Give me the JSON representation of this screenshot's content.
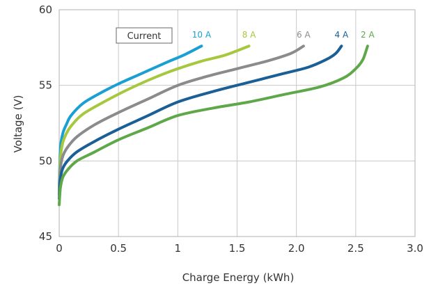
{
  "chart_data": {
    "type": "line",
    "xlabel": "Charge Energy (kWh)",
    "ylabel": "Voltage (V)",
    "xlim": [
      0,
      3.0
    ],
    "ylim": [
      45,
      60
    ],
    "x_ticks": [
      "0",
      "0.5",
      "1",
      "1.5",
      "2.0",
      "2.5",
      "3.0"
    ],
    "y_ticks": [
      "45",
      "50",
      "55",
      "60"
    ],
    "grid": true,
    "legend_title": "Current",
    "series": [
      {
        "name": "10 A",
        "color": "#1a9fd3",
        "x": [
          0,
          0.01,
          0.03,
          0.06,
          0.1,
          0.2,
          0.35,
          0.5,
          0.7,
          0.9,
          1.05,
          1.2
        ],
        "y": [
          48.3,
          50.8,
          51.8,
          52.4,
          53.0,
          53.8,
          54.5,
          55.1,
          55.8,
          56.5,
          57.0,
          57.6
        ]
      },
      {
        "name": "8 A",
        "color": "#a5c83e",
        "x": [
          0,
          0.01,
          0.03,
          0.06,
          0.1,
          0.2,
          0.4,
          0.6,
          0.8,
          1.0,
          1.2,
          1.4,
          1.6
        ],
        "y": [
          48.0,
          50.2,
          51.2,
          51.8,
          52.3,
          53.1,
          54.0,
          54.8,
          55.5,
          56.1,
          56.6,
          57.0,
          57.6
        ]
      },
      {
        "name": "6 A",
        "color": "#8a8b8d",
        "x": [
          0,
          0.01,
          0.03,
          0.07,
          0.15,
          0.3,
          0.5,
          0.75,
          1.0,
          1.25,
          1.5,
          1.75,
          1.95,
          2.06
        ],
        "y": [
          47.8,
          49.5,
          50.3,
          50.9,
          51.6,
          52.4,
          53.2,
          54.1,
          55.0,
          55.6,
          56.1,
          56.6,
          57.1,
          57.6
        ]
      },
      {
        "name": "4 A",
        "color": "#1a5f96",
        "x": [
          0,
          0.01,
          0.03,
          0.07,
          0.15,
          0.3,
          0.5,
          0.75,
          1.0,
          1.3,
          1.6,
          1.9,
          2.1,
          2.25,
          2.33,
          2.38
        ],
        "y": [
          47.5,
          48.8,
          49.5,
          50.0,
          50.6,
          51.3,
          52.1,
          53.0,
          53.9,
          54.6,
          55.2,
          55.8,
          56.2,
          56.7,
          57.1,
          57.6
        ]
      },
      {
        "name": "2 A",
        "color": "#5fa84a",
        "x": [
          0,
          0.01,
          0.03,
          0.07,
          0.15,
          0.3,
          0.5,
          0.75,
          1.0,
          1.3,
          1.6,
          1.9,
          2.2,
          2.4,
          2.5,
          2.56,
          2.6
        ],
        "y": [
          47.1,
          48.2,
          48.9,
          49.4,
          50.0,
          50.6,
          51.4,
          52.2,
          53.0,
          53.5,
          53.9,
          54.4,
          54.9,
          55.5,
          56.1,
          56.7,
          57.6
        ]
      }
    ]
  }
}
